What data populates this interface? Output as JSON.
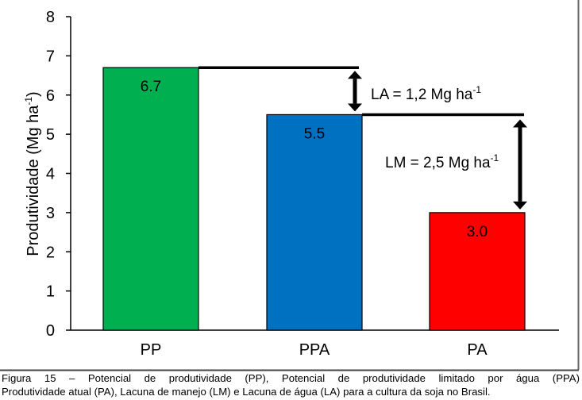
{
  "chart_data": {
    "type": "bar",
    "title": "",
    "xlabel": "",
    "ylabel": "Produtividade (Mg ha",
    "ylabel_sup": "-1",
    "ylabel_close": ")",
    "ylim": [
      0,
      8
    ],
    "yticks": [
      "0",
      "1",
      "2",
      "3",
      "4",
      "5",
      "6",
      "7",
      "8"
    ],
    "categories": [
      "PP",
      "PPA",
      "PA"
    ],
    "values": [
      6.7,
      5.5,
      3.0
    ],
    "value_labels": [
      "6.7",
      "5.5",
      "3.0"
    ],
    "colors": [
      "#00b050",
      "#0070c0",
      "#ff0000"
    ],
    "grid": false,
    "annotations": [
      {
        "text": "LA = 1,2 Mg ha",
        "sup": "-1",
        "from": 6.7,
        "to": 5.5
      },
      {
        "text": "LM = 2,5 Mg ha",
        "sup": "-1",
        "from": 5.5,
        "to": 3.0
      }
    ]
  },
  "caption": {
    "line1": "Figura 15 – Potencial de produtividade (PP), Potencial de produtividade limitado por água (PPA)",
    "line2": "Produtividade atual (PA), Lacuna de manejo (LM) e Lacuna de água (LA) para a cultura da soja no Brasil."
  }
}
